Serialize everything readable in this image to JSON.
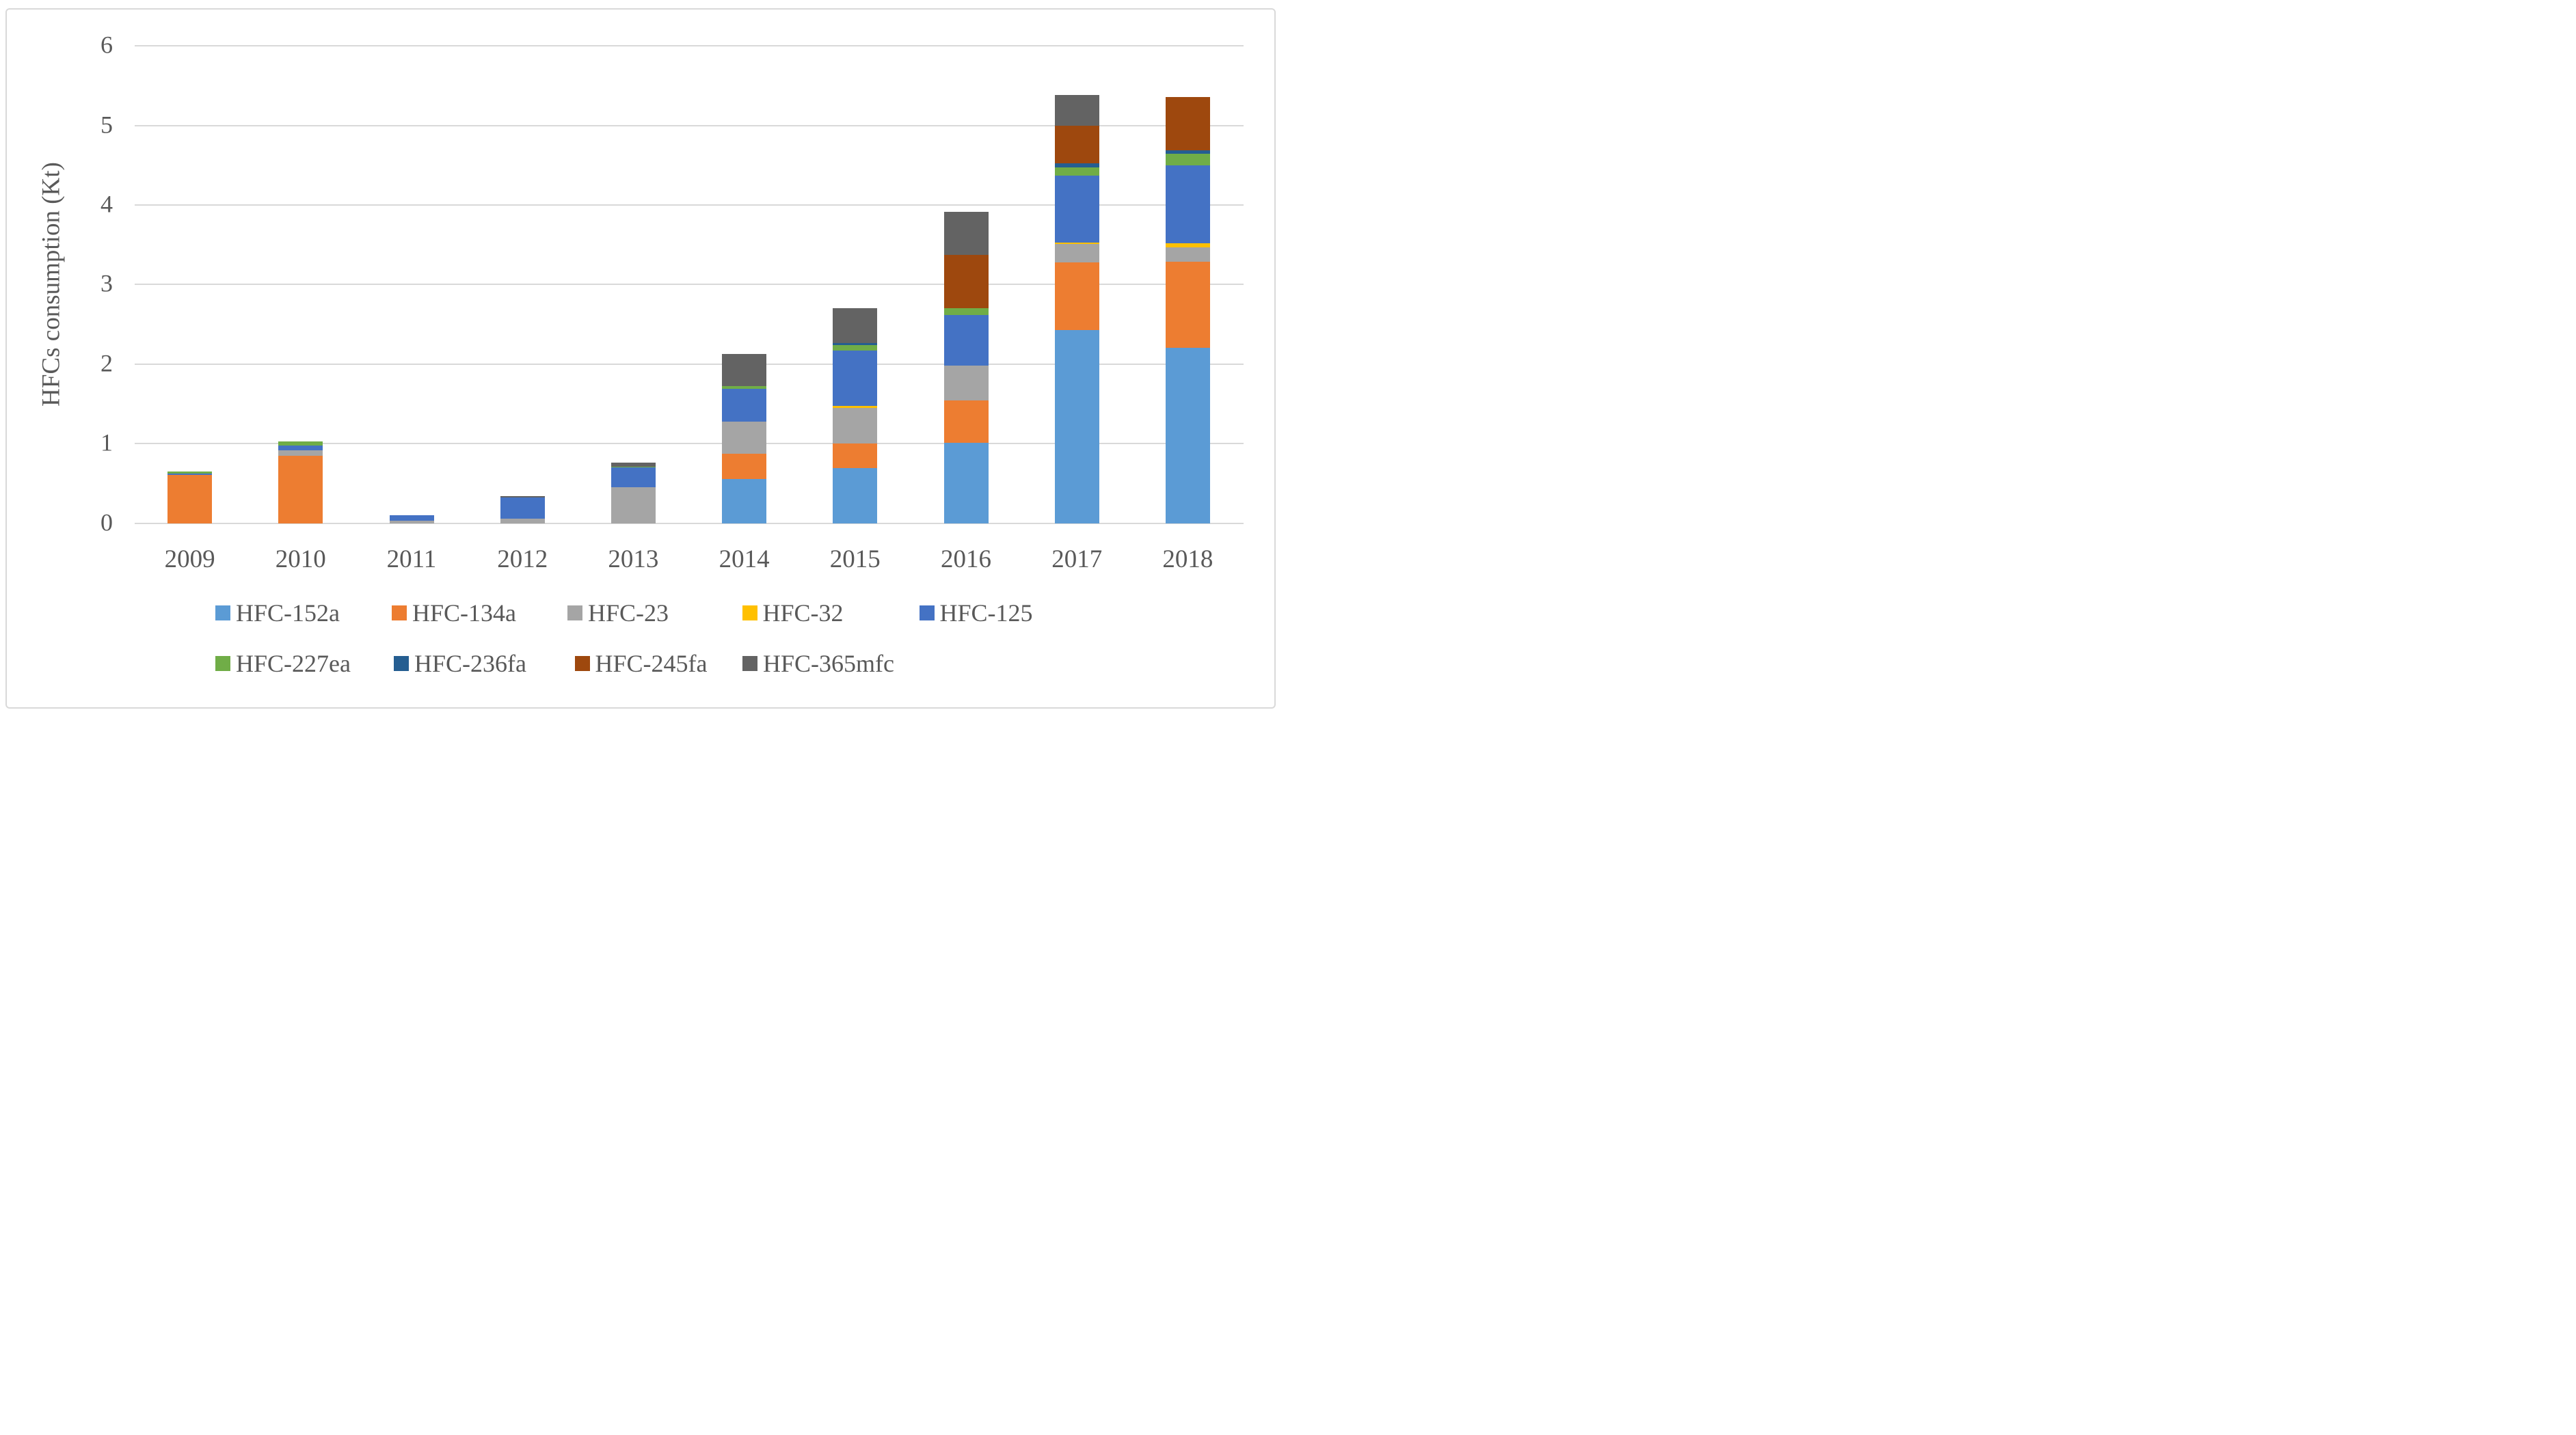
{
  "chart_data": {
    "type": "bar",
    "stacked": true,
    "title": "",
    "xlabel": "",
    "ylabel": "HFCs consumption (Kt)",
    "ylim": [
      0,
      6
    ],
    "yticks": [
      0,
      1,
      2,
      3,
      4,
      5,
      6
    ],
    "grid": "horizontal",
    "legend_position": "bottom",
    "legend_rows": [
      [
        "HFC-152a",
        "HFC-134a",
        "HFC-23",
        "HFC-32",
        "HFC-125"
      ],
      [
        "HFC-227ea",
        "HFC-236fa",
        "HFC-245fa",
        "HFC-365mfc"
      ]
    ],
    "categories": [
      "2009",
      "2010",
      "2011",
      "2012",
      "2013",
      "2014",
      "2015",
      "2016",
      "2017",
      "2018"
    ],
    "series": [
      {
        "name": "HFC-152a",
        "color": "#5B9BD5",
        "values": [
          0,
          0,
          0,
          0,
          0,
          0.55,
          0.69,
          1.01,
          2.43,
          2.2
        ]
      },
      {
        "name": "HFC-134a",
        "color": "#ED7D31",
        "values": [
          0.61,
          0.85,
          0,
          0,
          0,
          0.32,
          0.31,
          0.53,
          0.85,
          1.09
        ]
      },
      {
        "name": "HFC-23",
        "color": "#A5A5A5",
        "values": [
          0,
          0.065,
          0.03,
          0.055,
          0.45,
          0.41,
          0.45,
          0.44,
          0.23,
          0.18
        ]
      },
      {
        "name": "HFC-32",
        "color": "#FFC000",
        "values": [
          0,
          0,
          0,
          0,
          0,
          0,
          0.02,
          0,
          0.02,
          0.05
        ]
      },
      {
        "name": "HFC-125",
        "color": "#4472C4",
        "values": [
          0.015,
          0.06,
          0.065,
          0.27,
          0.25,
          0.41,
          0.7,
          0.64,
          0.84,
          0.98
        ]
      },
      {
        "name": "HFC-227ea",
        "color": "#70AD47",
        "values": [
          0.025,
          0.05,
          0,
          0,
          0.01,
          0.035,
          0.07,
          0.08,
          0.1,
          0.14
        ]
      },
      {
        "name": "HFC-236fa",
        "color": "#255E91",
        "values": [
          0,
          0,
          0,
          0,
          0,
          0,
          0.02,
          0,
          0.05,
          0.05
        ]
      },
      {
        "name": "HFC-245fa",
        "color": "#9E480E",
        "values": [
          0,
          0,
          0,
          0,
          0,
          0,
          0,
          0.67,
          0.48,
          0.67
        ]
      },
      {
        "name": "HFC-365mfc",
        "color": "#636363",
        "values": [
          0,
          0,
          0,
          0.01,
          0.05,
          0.4,
          0.44,
          0.54,
          0.38,
          0
        ]
      }
    ]
  }
}
